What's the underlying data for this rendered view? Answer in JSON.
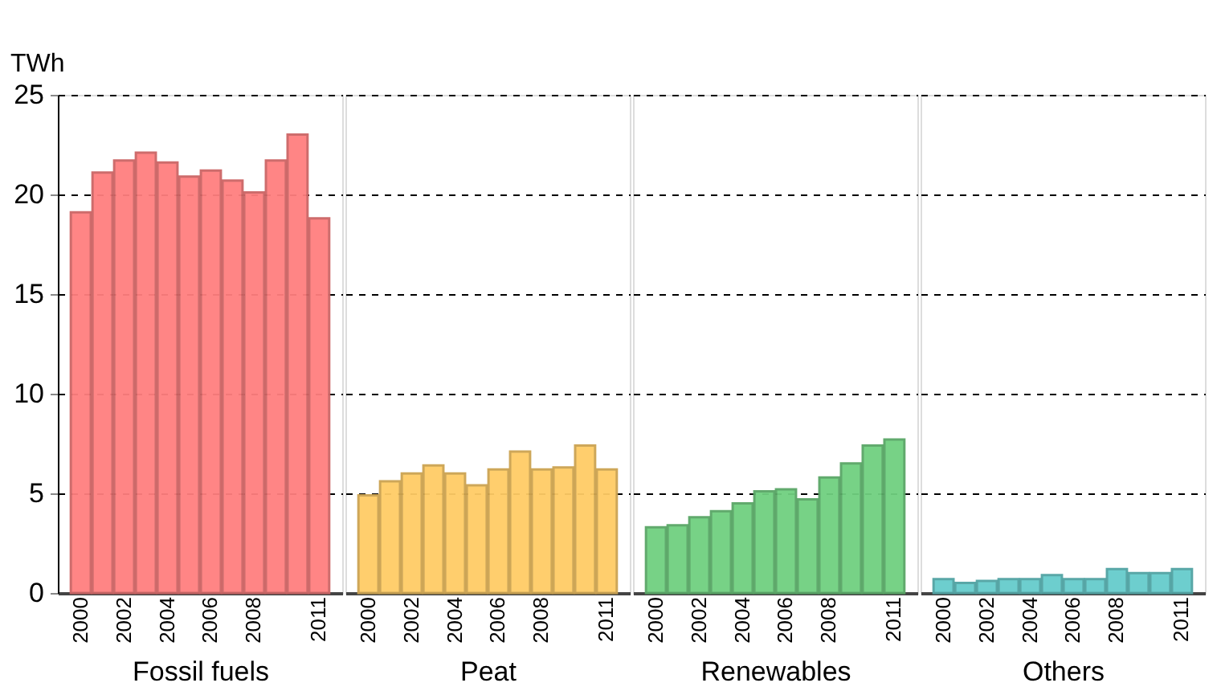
{
  "chart_data": [
    {
      "type": "bar",
      "xlabel": "Fossil fuels",
      "ylabel": "TWh",
      "categories": [
        "2000",
        null,
        "2002",
        null,
        "2004",
        null,
        "2006",
        null,
        "2008",
        null,
        null,
        "2011"
      ],
      "values": [
        19.1,
        21.1,
        21.7,
        22.1,
        21.6,
        20.9,
        21.2,
        20.7,
        20.1,
        21.7,
        23.0,
        18.8
      ],
      "color": "#ff7f7f",
      "ylim": [
        0,
        25
      ],
      "yticks": [
        0,
        5,
        10,
        15,
        20,
        25
      ],
      "grid": "y"
    },
    {
      "type": "bar",
      "xlabel": "Peat",
      "categories": [
        "2000",
        null,
        "2002",
        null,
        "2004",
        null,
        "2006",
        null,
        "2008",
        null,
        null,
        "2011"
      ],
      "values": [
        4.9,
        5.6,
        6.0,
        6.4,
        6.0,
        5.4,
        6.2,
        7.1,
        6.2,
        6.3,
        7.4,
        6.2
      ],
      "color": "#ffcc66",
      "ylim": [
        0,
        25
      ],
      "yticks": [
        0,
        5,
        10,
        15,
        20,
        25
      ],
      "grid": "y",
      "tick_labels": "x"
    },
    {
      "type": "bar",
      "xlabel": "Renewables",
      "categories": [
        "2000",
        null,
        "2002",
        null,
        "2004",
        null,
        "2006",
        null,
        "2008",
        null,
        null,
        "2011"
      ],
      "values": [
        3.3,
        3.4,
        3.8,
        4.1,
        4.5,
        5.1,
        5.2,
        4.7,
        5.8,
        6.5,
        7.4,
        7.7
      ],
      "color": "#70d080",
      "ylim": [
        0,
        25
      ],
      "yticks": [
        0,
        5,
        10,
        15,
        20,
        25
      ],
      "grid": "y",
      "tick_labels": "x"
    },
    {
      "type": "bar",
      "xlabel": "Others",
      "categories": [
        "2000",
        null,
        "2002",
        null,
        "2004",
        null,
        "2006",
        null,
        "2008",
        null,
        null,
        "2011"
      ],
      "values": [
        0.7,
        0.5,
        0.6,
        0.7,
        0.7,
        0.9,
        0.7,
        0.7,
        1.2,
        1.0,
        1.0,
        1.2
      ],
      "color": "#66cccc",
      "ylim": [
        0,
        25
      ],
      "yticks": [
        0,
        5,
        10,
        15,
        20,
        25
      ],
      "grid": "y",
      "tick_labels": "x"
    }
  ]
}
